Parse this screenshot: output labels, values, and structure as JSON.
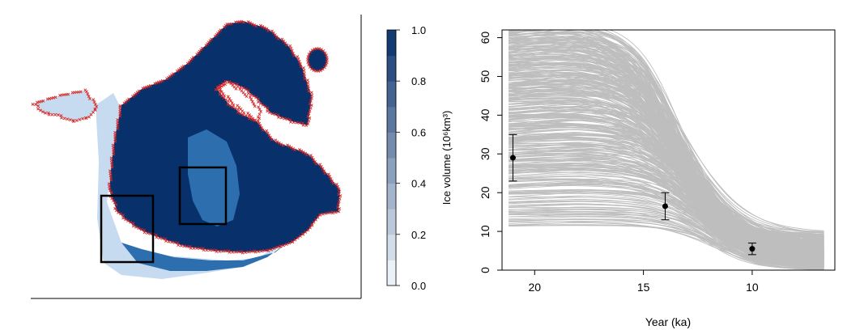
{
  "figure": {
    "colors": {
      "ice_dark": "#08306b",
      "ice_mid": "#2d6fae",
      "ice_light": "#c6dbef",
      "margin_marks": "#d62728",
      "ensemble_lines": "#bebebe",
      "observations": "#000000"
    }
  },
  "chart_data": [
    {
      "type": "heatmap",
      "description_kind": "ice sheet map",
      "colorbar": {
        "label": "Ice volume (10⁶km³)",
        "ticks": [
          "0.0",
          "0.2",
          "0.4",
          "0.6",
          "0.8",
          "1.0"
        ],
        "range": [
          0,
          1
        ]
      },
      "boxes": 2
    },
    {
      "type": "line",
      "xlabel": "Year (ka)",
      "ylabel": "",
      "xlim": [
        21.5,
        6.2
      ],
      "ylim": [
        0,
        62
      ],
      "x_reversed": true,
      "xticks": [
        20,
        15,
        10
      ],
      "yticks": [
        0,
        10,
        20,
        30,
        40,
        50,
        60
      ],
      "grid": false,
      "ensemble": {
        "count": 400,
        "lgm_range": [
          11,
          62
        ],
        "final_range": [
          0,
          10
        ],
        "line_color": "#bebebe"
      },
      "observations": [
        {
          "x": 21.0,
          "y": 29.0,
          "low": 23.0,
          "high": 35.0
        },
        {
          "x": 14.0,
          "y": 16.5,
          "low": 13.0,
          "high": 20.0
        },
        {
          "x": 10.0,
          "y": 5.5,
          "low": 4.0,
          "high": 7.0
        }
      ]
    }
  ]
}
